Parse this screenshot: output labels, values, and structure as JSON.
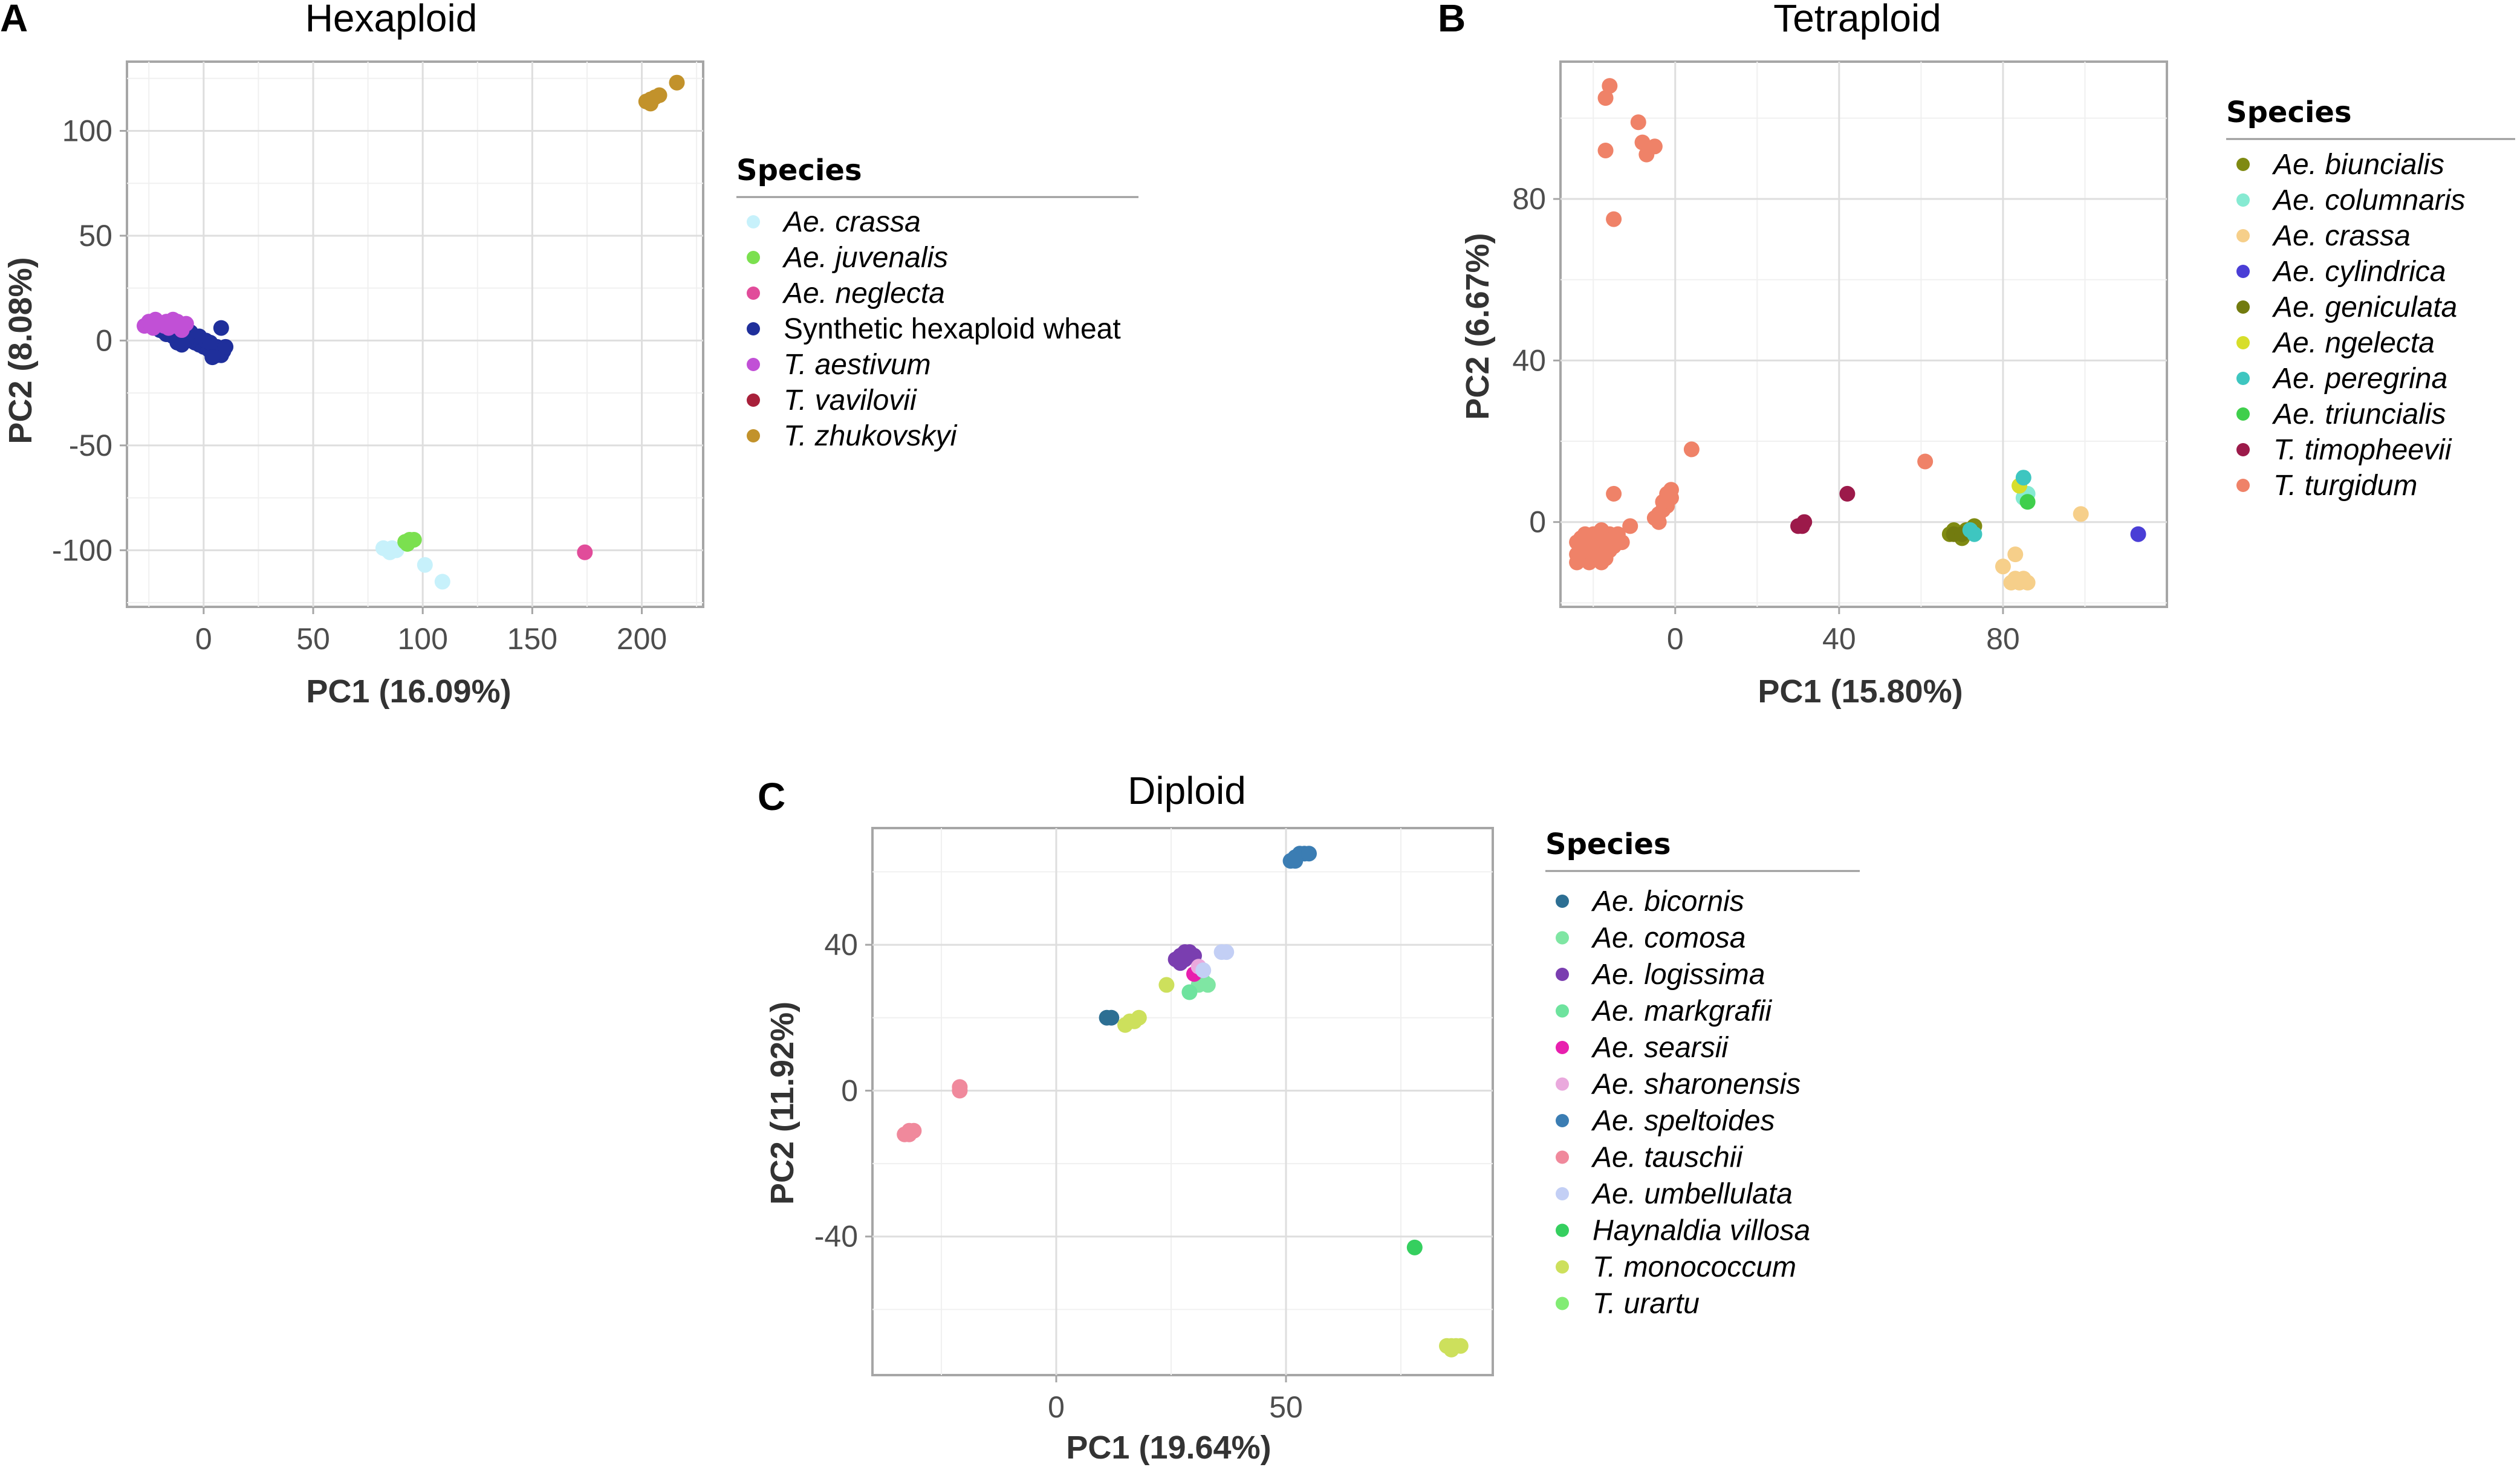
{
  "chart_data": [
    {
      "id": "A",
      "type": "scatter",
      "panel_label": "A",
      "title": "Hexaploid",
      "xlabel": "PC1 (16.09%)",
      "ylabel": "PC2 (8.08%)",
      "xlim": [
        -35,
        228
      ],
      "ylim": [
        -127,
        133
      ],
      "xticks": [
        0,
        50,
        100,
        150,
        200
      ],
      "yticks": [
        100,
        50,
        0,
        -50,
        -100
      ],
      "xticks_labels": [
        "0",
        "50",
        "100",
        "150",
        "200"
      ],
      "yticks_labels": [
        "100",
        "50",
        "0",
        "-50",
        "-100"
      ],
      "legend_title": "Species",
      "series": [
        {
          "name": "Ae. crassa",
          "italic": true,
          "color": "#c7f1fb",
          "points": [
            [
              82,
              -99
            ],
            [
              84,
              -100
            ],
            [
              86,
              -99
            ],
            [
              85,
              -101
            ],
            [
              88,
              -100
            ],
            [
              101,
              -107
            ],
            [
              109,
              -115
            ]
          ]
        },
        {
          "name": "Ae. juvenalis",
          "italic": true,
          "color": "#7be04f",
          "points": [
            [
              92,
              -96
            ],
            [
              94,
              -95
            ],
            [
              96,
              -95
            ],
            [
              93,
              -97
            ]
          ]
        },
        {
          "name": "Ae. neglecta",
          "italic": true,
          "color": "#e14c9a",
          "points": [
            [
              174,
              -101
            ]
          ]
        },
        {
          "name": "Synthetic hexaploid wheat",
          "italic": false,
          "color": "#1f2f9b",
          "points": [
            [
              -20,
              5
            ],
            [
              -18,
              4
            ],
            [
              -17,
              3
            ],
            [
              -15,
              4
            ],
            [
              -14,
              2
            ],
            [
              -13,
              3
            ],
            [
              -12,
              1
            ],
            [
              -11,
              2
            ],
            [
              -10,
              3
            ],
            [
              -9,
              1
            ],
            [
              -8,
              0
            ],
            [
              -7,
              2
            ],
            [
              -6,
              0
            ],
            [
              -5,
              1
            ],
            [
              -4,
              -1
            ],
            [
              -3,
              0
            ],
            [
              -2,
              -2
            ],
            [
              -1,
              -1
            ],
            [
              0,
              -3
            ],
            [
              1,
              -2
            ],
            [
              2,
              -4
            ],
            [
              3,
              -5
            ],
            [
              4,
              -3
            ],
            [
              5,
              -6
            ],
            [
              6,
              -7
            ],
            [
              7,
              -6
            ],
            [
              8,
              -7
            ],
            [
              -12,
              -1
            ],
            [
              -10,
              -2
            ],
            [
              -2,
              2
            ],
            [
              1,
              0
            ],
            [
              3,
              -1
            ],
            [
              6,
              -3
            ],
            [
              9,
              -5
            ],
            [
              10,
              -3
            ],
            [
              8,
              6
            ],
            [
              -6,
              4
            ],
            [
              4,
              -8
            ]
          ]
        },
        {
          "name": "T. aestivum",
          "italic": true,
          "color": "#c150d6",
          "points": [
            [
              -27,
              7
            ],
            [
              -25,
              9
            ],
            [
              -23,
              6
            ],
            [
              -22,
              10
            ],
            [
              -20,
              8
            ],
            [
              -18,
              7
            ],
            [
              -17,
              9
            ],
            [
              -16,
              6
            ],
            [
              -14,
              10
            ],
            [
              -13,
              7
            ],
            [
              -12,
              9
            ],
            [
              -10,
              5
            ],
            [
              -8,
              8
            ]
          ]
        },
        {
          "name": "T. vavilovii",
          "italic": true,
          "color": "#a8203a",
          "points": []
        },
        {
          "name": "T. zhukovskyi",
          "italic": true,
          "color": "#c2922b",
          "points": [
            [
              202,
              114
            ],
            [
              204,
              115
            ],
            [
              206,
              116
            ],
            [
              208,
              117
            ],
            [
              204,
              113
            ],
            [
              216,
              123
            ]
          ]
        }
      ]
    },
    {
      "id": "B",
      "type": "scatter",
      "panel_label": "B",
      "title": "Tetraploid",
      "xlabel": "PC1 (15.80%)",
      "ylabel": "PC2 (6.67%)",
      "xlim": [
        -28,
        120
      ],
      "ylim": [
        -21,
        114
      ],
      "xticks": [
        0,
        40,
        80
      ],
      "yticks": [
        80,
        40,
        0
      ],
      "xticks_labels": [
        "0",
        "40",
        "80"
      ],
      "yticks_labels": [
        "80",
        "40",
        "0"
      ],
      "legend_title": "Species",
      "series": [
        {
          "name": "Ae. biuncialis",
          "italic": true,
          "color": "#7f8a12",
          "points": [
            [
              67,
              -3
            ],
            [
              68,
              -2
            ],
            [
              69,
              -3
            ],
            [
              70,
              -4
            ],
            [
              71,
              -2
            ],
            [
              73,
              -1
            ]
          ]
        },
        {
          "name": "Ae. columnaris",
          "italic": true,
          "color": "#86ead2",
          "points": [
            [
              85,
              6
            ],
            [
              86,
              7
            ]
          ]
        },
        {
          "name": "Ae. crassa",
          "italic": true,
          "color": "#f6cf8a",
          "points": [
            [
              82,
              -15
            ],
            [
              83,
              -14
            ],
            [
              84,
              -15
            ],
            [
              85,
              -14
            ],
            [
              86,
              -15
            ],
            [
              80,
              -11
            ],
            [
              83,
              -8
            ],
            [
              99,
              2
            ]
          ]
        },
        {
          "name": "Ae. cylindrica",
          "italic": true,
          "color": "#4a3ed6",
          "points": [
            [
              113,
              -3
            ]
          ]
        },
        {
          "name": "Ae. geniculata",
          "italic": true,
          "color": "#727b0f",
          "points": [
            [
              68,
              -3
            ],
            [
              70,
              -3
            ]
          ]
        },
        {
          "name": "Ae. ngelecta",
          "italic": true,
          "color": "#d7de2a",
          "points": [
            [
              84,
              9
            ]
          ]
        },
        {
          "name": "Ae. peregrina",
          "italic": true,
          "color": "#3ec6c0",
          "points": [
            [
              85,
              11
            ],
            [
              72,
              -2
            ],
            [
              73,
              -3
            ]
          ]
        },
        {
          "name": "Ae. triuncialis",
          "italic": true,
          "color": "#3fcf4c",
          "points": [
            [
              86,
              5
            ]
          ]
        },
        {
          "name": "T. timopheevii",
          "italic": true,
          "color": "#9c1a4a",
          "points": [
            [
              30,
              -1
            ],
            [
              31,
              -1
            ],
            [
              31.5,
              0
            ],
            [
              42,
              7
            ]
          ]
        },
        {
          "name": "T. turgidum",
          "italic": true,
          "color": "#ef8268",
          "points": [
            [
              -16,
              108
            ],
            [
              -17,
              105
            ],
            [
              -9,
              99
            ],
            [
              -8,
              94
            ],
            [
              -5,
              93
            ],
            [
              -7,
              91
            ],
            [
              -17,
              92
            ],
            [
              -15,
              75
            ],
            [
              -24,
              -10
            ],
            [
              -23,
              -9
            ],
            [
              -22,
              -8
            ],
            [
              -21,
              -10
            ],
            [
              -20,
              -9
            ],
            [
              -19,
              -8
            ],
            [
              -18,
              -10
            ],
            [
              -17,
              -9
            ],
            [
              -16,
              -7
            ],
            [
              -15,
              -6
            ],
            [
              -24,
              -8
            ],
            [
              -23,
              -6
            ],
            [
              -22,
              -5
            ],
            [
              -21,
              -7
            ],
            [
              -20,
              -5
            ],
            [
              -19,
              -4
            ],
            [
              -18,
              -6
            ],
            [
              -22,
              -3
            ],
            [
              -20,
              -3
            ],
            [
              -18,
              -2
            ],
            [
              -16,
              -3
            ],
            [
              -15,
              -4
            ],
            [
              -14,
              -3
            ],
            [
              -13,
              -5
            ],
            [
              -11,
              -1
            ],
            [
              -4,
              0
            ],
            [
              -5,
              1
            ],
            [
              -4,
              2
            ],
            [
              -3,
              3
            ],
            [
              -2,
              4
            ],
            [
              -1,
              6
            ],
            [
              -1,
              8
            ],
            [
              -2,
              7
            ],
            [
              -3,
              5
            ],
            [
              -15,
              7
            ],
            [
              4,
              18
            ],
            [
              61,
              15
            ],
            [
              -22,
              -7
            ],
            [
              -24,
              -5
            ],
            [
              -23,
              -4
            ],
            [
              -21,
              -4
            ],
            [
              -17,
              -5
            ]
          ]
        }
      ]
    },
    {
      "id": "C",
      "type": "scatter",
      "panel_label": "C",
      "title": "Diploid",
      "xlabel": "PC1 (19.64%)",
      "ylabel": "PC2 (11.92%)",
      "xlim": [
        -40,
        95
      ],
      "ylim": [
        -78,
        72
      ],
      "xticks": [
        0,
        50
      ],
      "yticks": [
        40,
        0,
        -40
      ],
      "xticks_labels": [
        "0",
        "50"
      ],
      "yticks_labels": [
        "40",
        "0",
        "-40"
      ],
      "legend_title": "Species",
      "series": [
        {
          "name": "Ae. bicornis",
          "italic": true,
          "color": "#2d6f93",
          "points": [
            [
              11,
              20
            ],
            [
              12,
              20
            ]
          ]
        },
        {
          "name": "Ae. comosa",
          "italic": true,
          "color": "#7fe6a3",
          "points": [
            [
              31,
              29
            ],
            [
              32,
              30
            ],
            [
              33,
              29
            ]
          ]
        },
        {
          "name": "Ae. logissima",
          "italic": true,
          "color": "#7a3eb0",
          "points": [
            [
              26,
              36
            ],
            [
              27,
              37
            ],
            [
              28,
              38
            ],
            [
              29,
              38
            ],
            [
              30,
              37
            ],
            [
              27,
              35
            ],
            [
              28,
              36
            ]
          ]
        },
        {
          "name": "Ae. markgrafii",
          "italic": true,
          "color": "#6ee39e",
          "points": [
            [
              29,
              27
            ]
          ]
        },
        {
          "name": "Ae. searsii",
          "italic": true,
          "color": "#e81fae",
          "points": [
            [
              30,
              32
            ]
          ]
        },
        {
          "name": "Ae. sharonensis",
          "italic": true,
          "color": "#eaa9dd",
          "points": [
            [
              31,
              34
            ]
          ]
        },
        {
          "name": "Ae. speltoides",
          "italic": true,
          "color": "#3b7db3",
          "points": [
            [
              51,
              63
            ],
            [
              52,
              64
            ],
            [
              53,
              65
            ],
            [
              54,
              65
            ],
            [
              55,
              65
            ],
            [
              52,
              63
            ]
          ]
        },
        {
          "name": "Ae. tauschii",
          "italic": true,
          "color": "#f0899c",
          "points": [
            [
              -33,
              -12
            ],
            [
              -32,
              -11
            ],
            [
              -31,
              -11
            ],
            [
              -32,
              -12
            ],
            [
              -21,
              0
            ],
            [
              -21,
              1
            ]
          ]
        },
        {
          "name": "Ae. umbellulata",
          "italic": true,
          "color": "#c3cff5",
          "points": [
            [
              32,
              33
            ],
            [
              36,
              38
            ],
            [
              37,
              38
            ]
          ]
        },
        {
          "name": "Haynaldia villosa",
          "italic": true,
          "color": "#35cf5f",
          "points": [
            [
              78,
              -43
            ]
          ]
        },
        {
          "name": "T. monococcum",
          "italic": true,
          "color": "#cde05c",
          "points": [
            [
              15,
              18
            ],
            [
              16,
              19
            ],
            [
              17,
              19
            ],
            [
              18,
              20
            ],
            [
              24,
              29
            ],
            [
              85,
              -70
            ],
            [
              86,
              -70
            ],
            [
              87,
              -70
            ],
            [
              88,
              -70
            ],
            [
              86,
              -71
            ]
          ]
        },
        {
          "name": "T. urartu",
          "italic": true,
          "color": "#82ec74",
          "points": []
        }
      ]
    }
  ]
}
